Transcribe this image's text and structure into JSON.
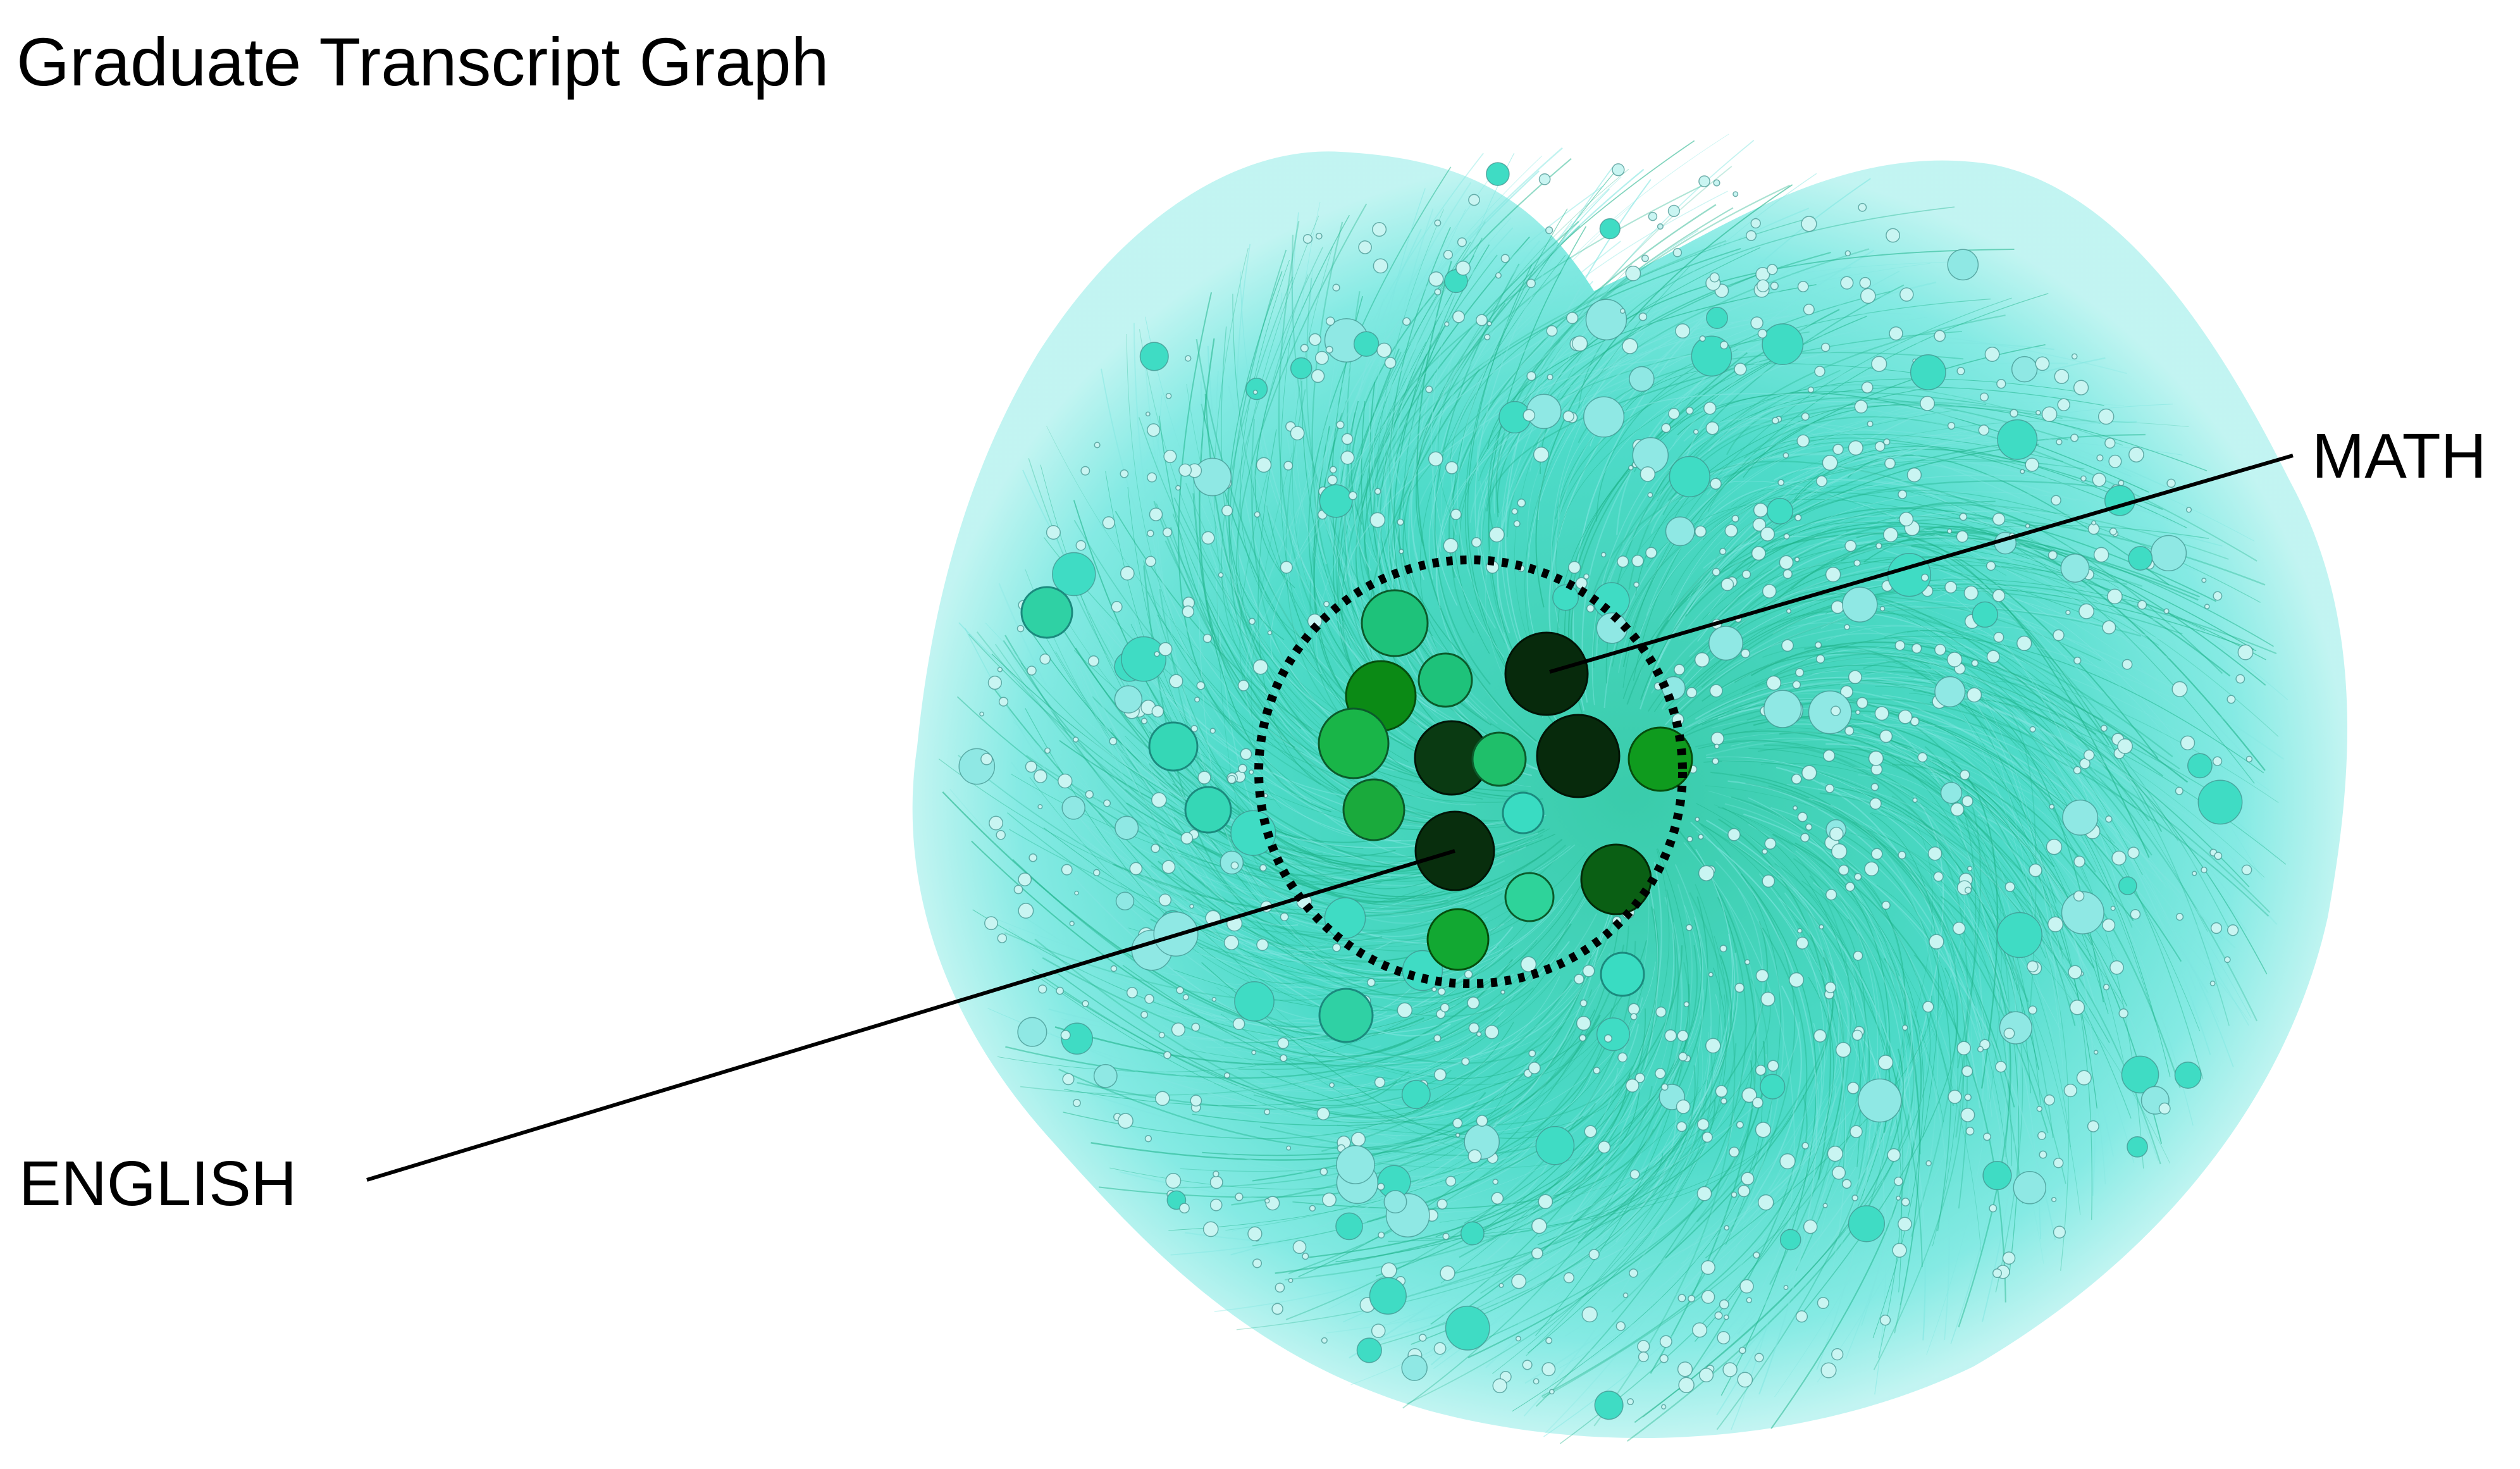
{
  "title": "Graduate Transcript Graph",
  "title_partial_prefix": "·",
  "callouts": {
    "math": "MATH",
    "english": "ENGLISH"
  },
  "colors": {
    "background": "#ffffff",
    "edge_light": "#7fe6e0",
    "edge_dark": "#1fb38a",
    "node_fill": "#8fe8e4",
    "node_stroke": "#3f8f8a",
    "core_dark": "#072a0c",
    "core_mid": "#0b8a15",
    "core_light": "#1ec27a",
    "highlight_ring": "#000000"
  },
  "core_nodes": [
    {
      "label": "MATH",
      "shade": "core_dark"
    },
    {
      "label": "ENGLISH",
      "shade": "core_dark"
    }
  ]
}
